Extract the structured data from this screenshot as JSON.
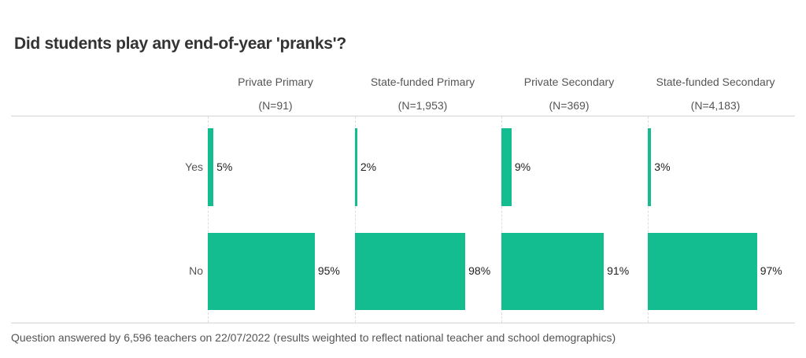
{
  "chart_data": {
    "type": "bar",
    "orientation": "horizontal",
    "title": "Did students play any end-of-year 'pranks'?",
    "categories": [
      "Yes",
      "No"
    ],
    "panels": [
      {
        "name": "Private Primary",
        "n": "(N=91)",
        "values": [
          5,
          95
        ]
      },
      {
        "name": "State-funded Primary",
        "n": "(N=1,953)",
        "values": [
          2,
          98
        ]
      },
      {
        "name": "Private Secondary",
        "n": "(N=369)",
        "values": [
          9,
          91
        ]
      },
      {
        "name": "State-funded Secondary",
        "n": "(N=4,183)",
        "values": [
          3,
          97
        ]
      }
    ],
    "xlim": [
      0,
      100
    ],
    "bar_color": "#13bd8f",
    "footer": "Question answered by 6,596 teachers on 22/07/2022 (results weighted to reflect national teacher and school demographics)"
  }
}
